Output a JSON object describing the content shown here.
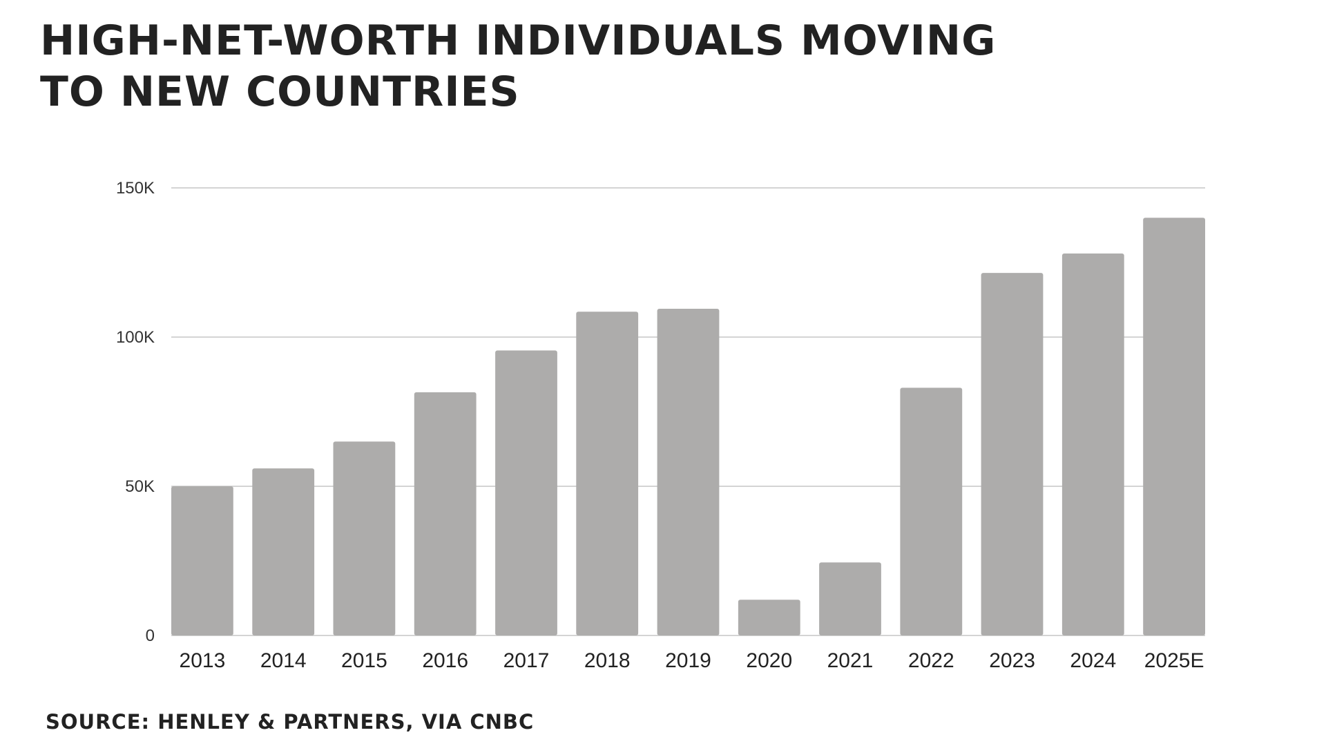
{
  "title": "HIGH-NET-WORTH INDIVIDUALS MOVING TO NEW COUNTRIES",
  "source": "SOURCE: HENLEY & PARTNERS, VIA CNBC",
  "colors": {
    "bar": "#adacab",
    "grid": "#d4d4d4",
    "text": "#222222"
  },
  "chart_data": {
    "type": "bar",
    "title": "HIGH-NET-WORTH INDIVIDUALS MOVING TO NEW COUNTRIES",
    "xlabel": "",
    "ylabel": "",
    "categories": [
      "2013",
      "2014",
      "2015",
      "2016",
      "2017",
      "2018",
      "2019",
      "2020",
      "2021",
      "2022",
      "2023",
      "2024",
      "2025E"
    ],
    "values": [
      50000,
      56000,
      65000,
      81500,
      95500,
      108500,
      109500,
      12000,
      24500,
      83000,
      121500,
      128000,
      140000
    ],
    "ylim": [
      0,
      150000
    ],
    "yticks": [
      0,
      50000,
      100000,
      150000
    ],
    "ytick_labels": [
      "0",
      "50K",
      "100K",
      "150K"
    ],
    "grid": true,
    "legend": "none"
  }
}
